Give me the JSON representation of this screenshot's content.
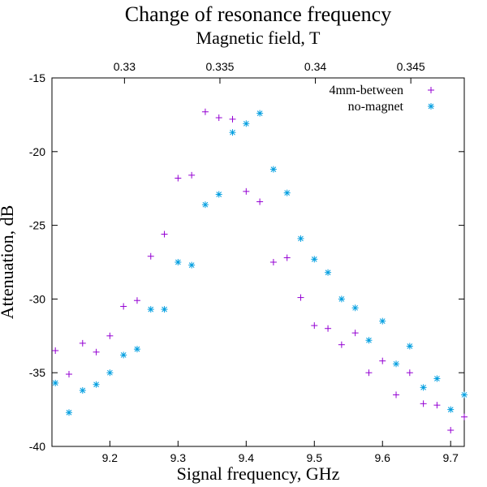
{
  "chart_data": {
    "type": "scatter",
    "title": "Change of resonance frequency",
    "xlabel": "Signal frequency, GHz",
    "ylabel": "Attenuation, dB",
    "x2label": "Magnetic field, T",
    "xlim": [
      9.115,
      9.72
    ],
    "ylim": [
      -40,
      -15
    ],
    "x2lim": [
      0.3262,
      0.3478
    ],
    "xticks": [
      9.2,
      9.3,
      9.4,
      9.5,
      9.6,
      9.7
    ],
    "xtick_labels": [
      "9.2",
      "9.3",
      "9.4",
      "9.5",
      "9.6",
      "9.7"
    ],
    "yticks": [
      -40,
      -35,
      -30,
      -25,
      -20,
      -15
    ],
    "ytick_labels": [
      "-40",
      "-35",
      "-30",
      "-25",
      "-20",
      "-15"
    ],
    "x2ticks": [
      0.33,
      0.335,
      0.34,
      0.345
    ],
    "x2tick_labels": [
      "0.33",
      "0.335",
      "0.34",
      "0.345"
    ],
    "grid": false,
    "legend_position": "top-right",
    "series": [
      {
        "name": "4mm-between",
        "marker": "plus",
        "color": "#9400d3",
        "x": [
          9.12,
          9.14,
          9.16,
          9.18,
          9.2,
          9.22,
          9.24,
          9.26,
          9.28,
          9.3,
          9.32,
          9.34,
          9.36,
          9.38,
          9.4,
          9.42,
          9.44,
          9.46,
          9.48,
          9.5,
          9.52,
          9.54,
          9.56,
          9.58,
          9.6,
          9.62,
          9.64,
          9.66,
          9.68,
          9.7,
          9.72
        ],
        "y": [
          -33.5,
          -35.1,
          -33.0,
          -33.6,
          -32.5,
          -30.5,
          -30.1,
          -27.1,
          -25.6,
          -21.8,
          -21.6,
          -17.3,
          -17.7,
          -17.8,
          -22.7,
          -23.4,
          -27.5,
          -27.2,
          -29.9,
          -31.8,
          -32.0,
          -33.1,
          -32.3,
          -35.0,
          -34.2,
          -36.5,
          -35.0,
          -37.1,
          -37.2,
          -38.9,
          -38.0
        ]
      },
      {
        "name": "no-magnet",
        "marker": "star",
        "color": "#009ee0",
        "x": [
          9.12,
          9.14,
          9.16,
          9.18,
          9.2,
          9.22,
          9.24,
          9.26,
          9.28,
          9.3,
          9.32,
          9.34,
          9.36,
          9.38,
          9.4,
          9.42,
          9.44,
          9.46,
          9.48,
          9.5,
          9.52,
          9.54,
          9.56,
          9.58,
          9.6,
          9.62,
          9.64,
          9.66,
          9.68,
          9.7,
          9.72
        ],
        "y": [
          -35.7,
          -37.7,
          -36.2,
          -35.8,
          -35.0,
          -33.8,
          -33.4,
          -30.7,
          -30.7,
          -27.5,
          -27.7,
          -23.6,
          -22.9,
          -18.7,
          -18.1,
          -17.4,
          -21.2,
          -22.8,
          -25.9,
          -27.3,
          -28.2,
          -30.0,
          -30.6,
          -32.8,
          -31.5,
          -34.4,
          -33.2,
          -36.0,
          -35.4,
          -37.5,
          -36.5
        ]
      }
    ]
  }
}
